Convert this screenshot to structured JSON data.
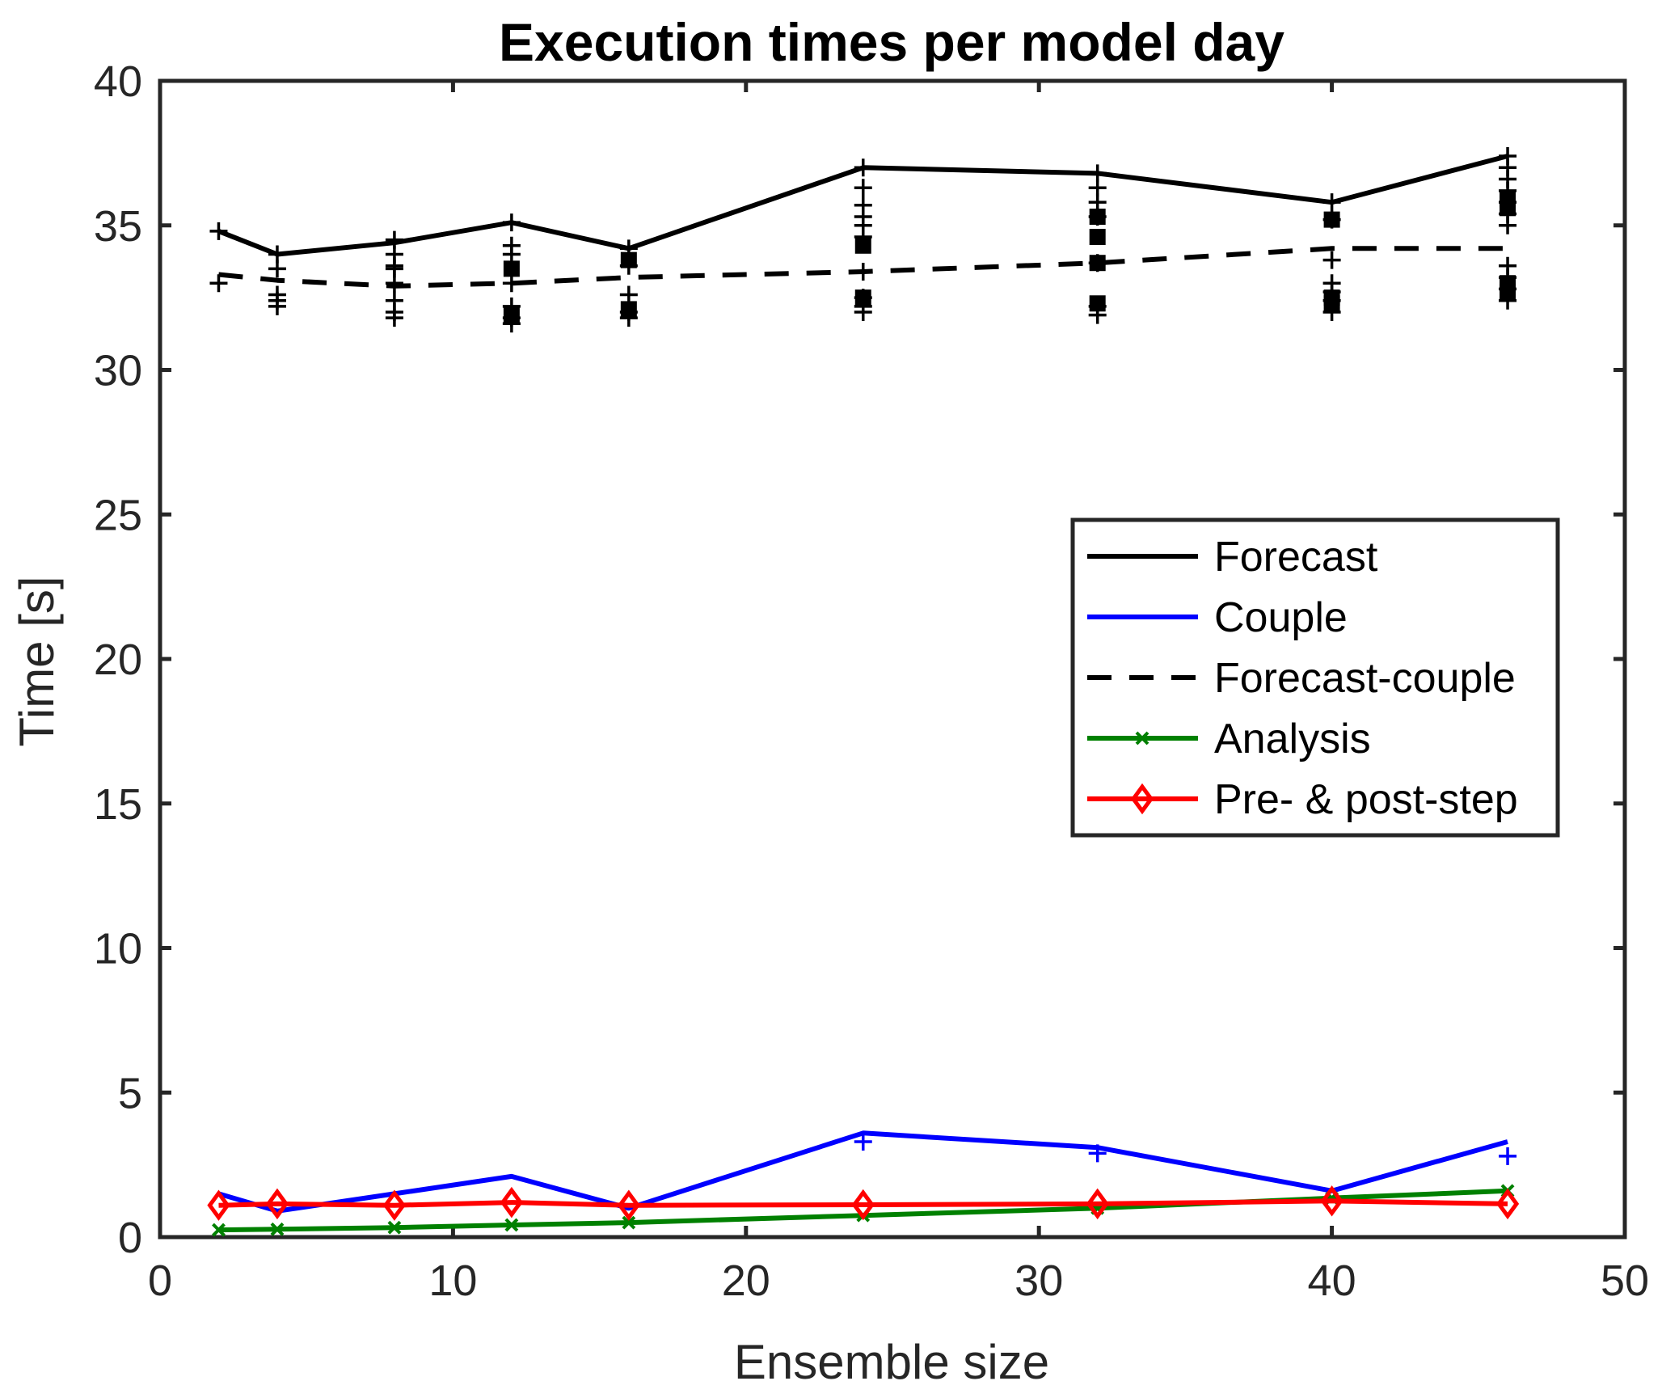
{
  "chart_data": {
    "type": "line",
    "title": "Execution times per model day",
    "xlabel": "Ensemble size",
    "ylabel": "Time [s]",
    "xlim": [
      0,
      50
    ],
    "ylim": [
      0,
      40
    ],
    "xticks": [
      0,
      10,
      20,
      30,
      40,
      50
    ],
    "yticks": [
      0,
      5,
      10,
      15,
      20,
      25,
      30,
      35,
      40
    ],
    "grid": false,
    "legend_position": "right-center",
    "x": [
      2,
      4,
      8,
      12,
      16,
      24,
      32,
      40,
      46
    ],
    "series": [
      {
        "name": "Forecast",
        "color": "#000000",
        "line_style": "solid",
        "marker": "none",
        "values": [
          34.8,
          34.0,
          34.4,
          35.1,
          34.2,
          37.0,
          36.8,
          35.8,
          37.4
        ]
      },
      {
        "name": "Couple",
        "color": "#0000ff",
        "line_style": "solid",
        "marker": "none",
        "values": [
          1.5,
          0.9,
          1.5,
          2.1,
          1.0,
          3.6,
          3.1,
          1.6,
          3.3
        ]
      },
      {
        "name": "Forecast-couple",
        "color": "#000000",
        "line_style": "dashed",
        "marker": "none",
        "values": [
          33.3,
          33.1,
          32.9,
          33.0,
          33.2,
          33.4,
          33.7,
          34.2,
          34.2
        ]
      },
      {
        "name": "Analysis",
        "color": "#008000",
        "line_style": "solid",
        "marker": "x",
        "values": [
          0.25,
          0.27,
          0.33,
          0.42,
          0.5,
          0.75,
          1.0,
          1.35,
          1.6
        ]
      },
      {
        "name": "Pre- & post-step",
        "color": "#ff0000",
        "line_style": "solid",
        "marker": "diamond",
        "values": [
          1.1,
          1.15,
          1.1,
          1.2,
          1.1,
          1.12,
          1.15,
          1.25,
          1.15
        ]
      }
    ],
    "individual_points": {
      "forecast_plus": [
        {
          "x": 2,
          "values": [
            34.8
          ]
        },
        {
          "x": 4,
          "values": [
            34.0,
            33.5
          ]
        },
        {
          "x": 8,
          "values": [
            34.5,
            34.0,
            33.6
          ]
        },
        {
          "x": 12,
          "values": [
            35.1,
            34.3,
            34.0
          ]
        },
        {
          "x": 16,
          "values": [
            34.2,
            33.6
          ]
        },
        {
          "x": 24,
          "values": [
            37.0,
            36.3,
            35.7,
            35.3,
            35.0,
            34.6
          ]
        },
        {
          "x": 32,
          "values": [
            36.8,
            36.3,
            35.8,
            35.3
          ]
        },
        {
          "x": 40,
          "values": [
            35.8,
            35.2
          ]
        },
        {
          "x": 46,
          "values": [
            37.4,
            37.0,
            36.6,
            36.2,
            35.8,
            35.4,
            35.0
          ]
        }
      ],
      "forecast_square": [
        {
          "x": 12,
          "values": [
            33.5
          ]
        },
        {
          "x": 16,
          "values": [
            33.8
          ]
        },
        {
          "x": 24,
          "values": [
            34.3
          ]
        },
        {
          "x": 32,
          "values": [
            35.3,
            34.6
          ]
        },
        {
          "x": 40,
          "values": [
            35.2
          ]
        },
        {
          "x": 46,
          "values": [
            35.9,
            35.6
          ]
        }
      ],
      "fc_plus": [
        {
          "x": 2,
          "values": [
            33.0
          ]
        },
        {
          "x": 4,
          "values": [
            32.6,
            32.4,
            32.2
          ]
        },
        {
          "x": 8,
          "values": [
            33.5,
            33.0,
            32.4,
            32.0,
            31.8
          ]
        },
        {
          "x": 12,
          "values": [
            33.0,
            32.2,
            31.8,
            31.6
          ]
        },
        {
          "x": 16,
          "values": [
            32.6,
            32.0,
            31.8
          ]
        },
        {
          "x": 24,
          "values": [
            33.4,
            32.5,
            32.2,
            32.0
          ]
        },
        {
          "x": 32,
          "values": [
            33.7,
            32.2,
            31.9
          ]
        },
        {
          "x": 40,
          "values": [
            33.8,
            33.0,
            32.7,
            32.4,
            32.0
          ]
        },
        {
          "x": 46,
          "values": [
            33.6,
            33.2,
            32.8,
            32.4
          ]
        }
      ],
      "fc_square": [
        {
          "x": 12,
          "values": [
            31.9
          ]
        },
        {
          "x": 16,
          "values": [
            32.1
          ]
        },
        {
          "x": 24,
          "values": [
            32.5
          ]
        },
        {
          "x": 32,
          "values": [
            33.7,
            32.3
          ]
        },
        {
          "x": 40,
          "values": [
            32.5,
            32.3
          ]
        },
        {
          "x": 46,
          "values": [
            33.0,
            32.7
          ]
        }
      ],
      "couple_plus": [
        {
          "x": 24,
          "values": [
            3.3
          ]
        },
        {
          "x": 32,
          "values": [
            2.9
          ]
        },
        {
          "x": 46,
          "values": [
            2.8
          ]
        }
      ]
    }
  }
}
